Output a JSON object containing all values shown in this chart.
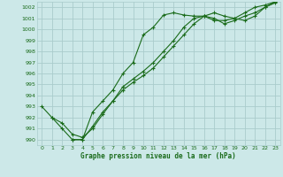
{
  "title": "Graphe pression niveau de la mer (hPa)",
  "bg_color": "#cce8e8",
  "grid_color": "#aacccc",
  "line_color": "#1a6b1a",
  "xlim": [
    -0.5,
    23.5
  ],
  "ylim": [
    989.5,
    1002.5
  ],
  "yticks": [
    990,
    991,
    992,
    993,
    994,
    995,
    996,
    997,
    998,
    999,
    1000,
    1001,
    1002
  ],
  "xticks": [
    0,
    1,
    2,
    3,
    4,
    5,
    6,
    7,
    8,
    9,
    10,
    11,
    12,
    13,
    14,
    15,
    16,
    17,
    18,
    19,
    20,
    21,
    22,
    23
  ],
  "line1_x": [
    0,
    1,
    2,
    3,
    4,
    5,
    6,
    7,
    8,
    9,
    10,
    11,
    12,
    13,
    14,
    15,
    16,
    17,
    18,
    19,
    20,
    21,
    22,
    23
  ],
  "line1_y": [
    993.0,
    992.0,
    991.0,
    990.0,
    990.0,
    992.5,
    993.5,
    994.5,
    996.0,
    997.0,
    999.5,
    1000.2,
    1001.3,
    1001.5,
    1001.3,
    1001.2,
    1001.2,
    1000.8,
    1000.8,
    1001.0,
    1001.5,
    1002.0,
    1002.2,
    1002.5
  ],
  "line2_x": [
    1,
    2,
    3,
    4,
    5,
    6,
    7,
    8,
    9,
    10,
    11,
    12,
    13,
    14,
    15,
    16,
    17,
    18,
    19,
    20,
    21,
    22,
    23
  ],
  "line2_y": [
    992.0,
    991.5,
    990.5,
    990.2,
    991.0,
    992.3,
    993.5,
    994.8,
    995.5,
    996.2,
    997.0,
    998.0,
    999.0,
    1000.2,
    1001.0,
    1001.2,
    1001.0,
    1000.5,
    1000.8,
    1001.2,
    1001.5,
    1002.0,
    1002.4
  ],
  "line3_x": [
    3,
    4,
    5,
    6,
    7,
    8,
    9,
    10,
    11,
    12,
    13,
    14,
    15,
    16,
    17,
    18,
    19,
    20,
    21,
    22,
    23
  ],
  "line3_y": [
    990.0,
    990.0,
    991.2,
    992.5,
    993.5,
    994.5,
    995.2,
    995.8,
    996.5,
    997.5,
    998.5,
    999.5,
    1000.5,
    1001.2,
    1001.5,
    1001.2,
    1001.0,
    1000.8,
    1001.2,
    1002.0,
    1002.5
  ]
}
